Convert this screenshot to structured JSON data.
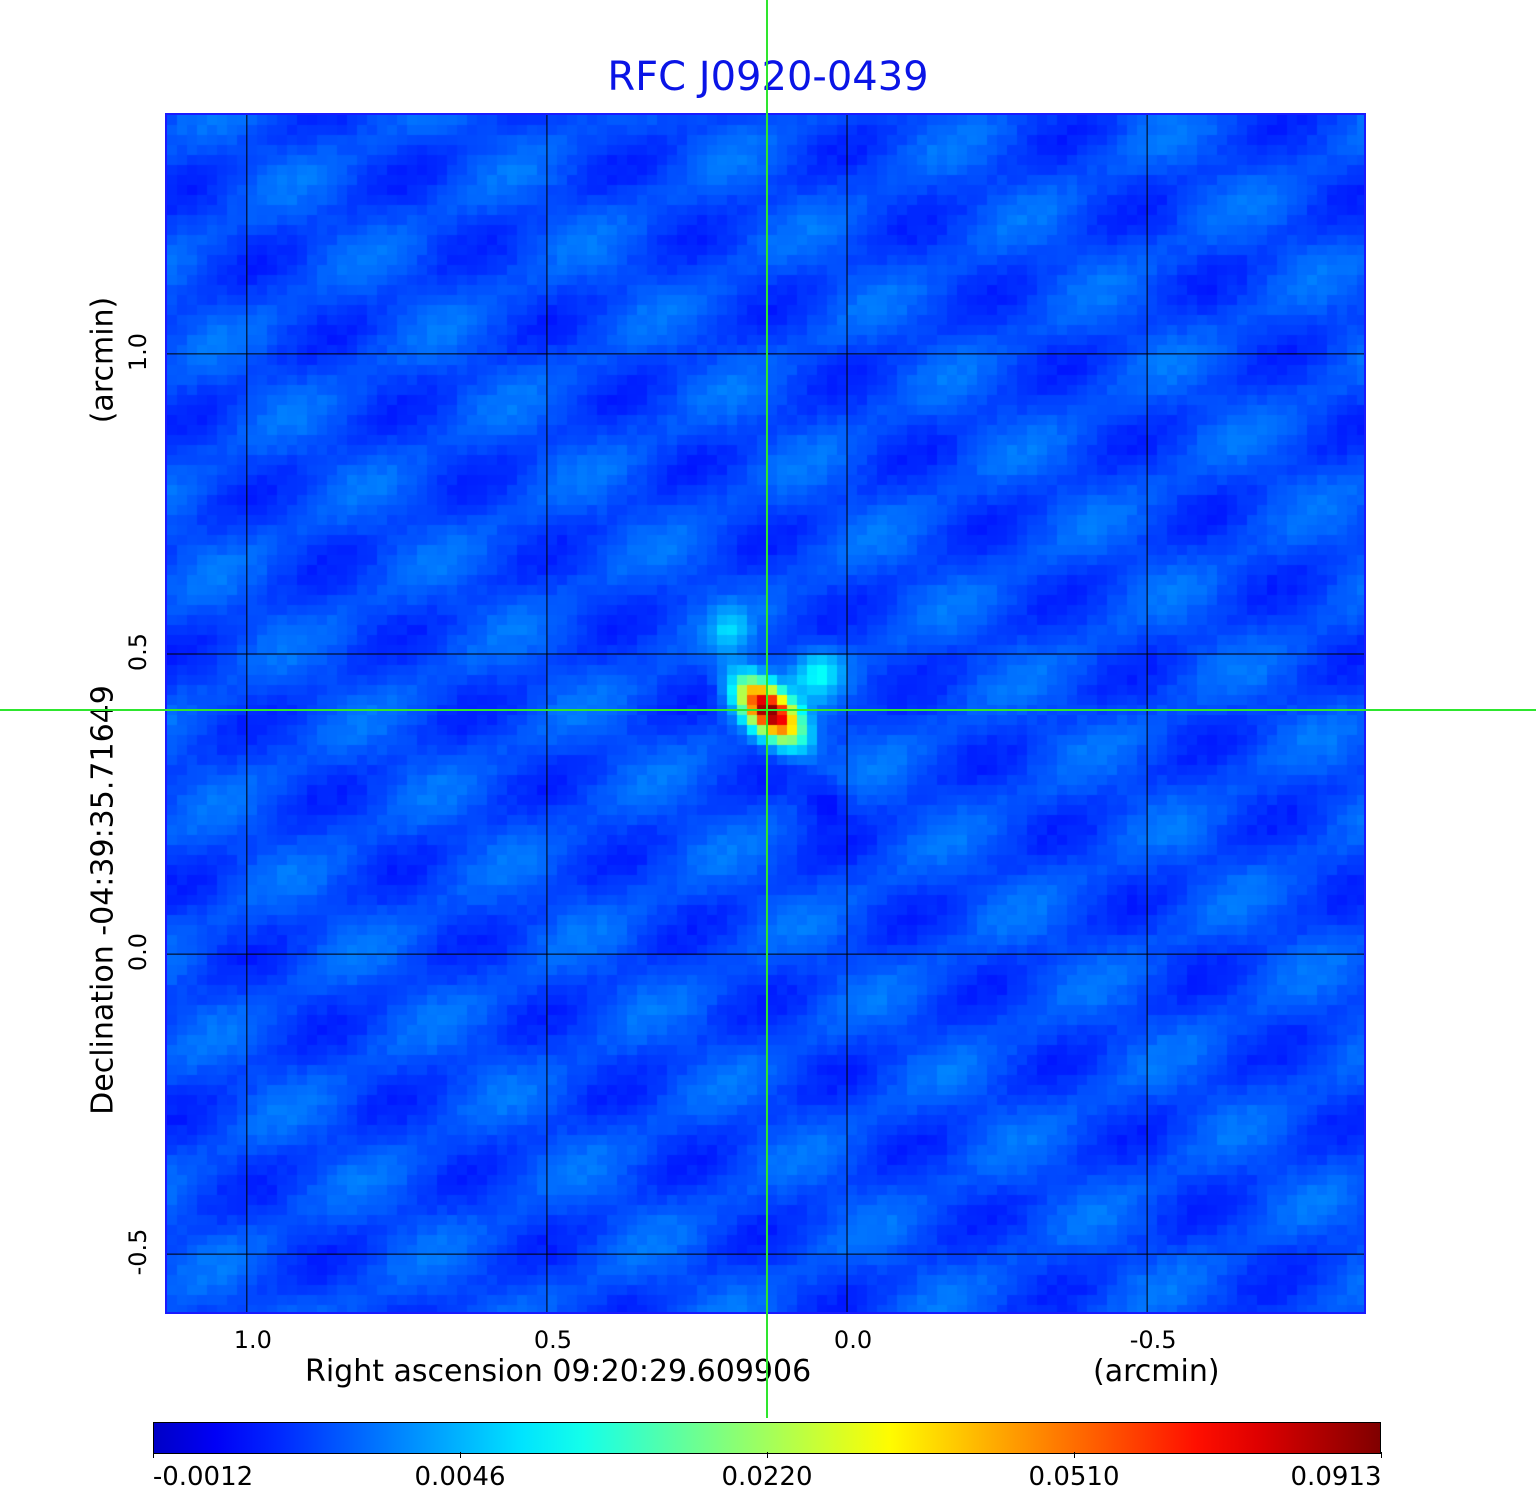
{
  "chart_data": {
    "type": "heatmap",
    "title": "RFC J0920-0439",
    "xlabel": "Right ascension  09:20:29.609906",
    "xunit": "(arcmin)",
    "ylabel": "Declination  -04:39:35.71649",
    "yunit": "(arcmin)",
    "xlim": [
      1.133,
      -0.868
    ],
    "ylim": [
      -0.603,
      1.398
    ],
    "xticks": [
      {
        "value": 1.0,
        "label": "1.0"
      },
      {
        "value": 0.5,
        "label": "0.5"
      },
      {
        "value": 0.0,
        "label": "0.0"
      },
      {
        "value": -0.5,
        "label": "-0.5"
      }
    ],
    "yticks": [
      {
        "value": 1.0,
        "label": "1.0"
      },
      {
        "value": 0.5,
        "label": "0.5"
      },
      {
        "value": 0.0,
        "label": "0.0"
      },
      {
        "value": -0.5,
        "label": "-0.5"
      }
    ],
    "grid": true,
    "crosshair": {
      "x": 0.13,
      "y": 0.405,
      "color": "#2ee62e"
    },
    "source_peak": {
      "x": 0.13,
      "y": 0.405,
      "value": 0.0913
    },
    "colormap": "jet",
    "colorbar": {
      "placement": "bottom",
      "ticks": [
        "-0.0012",
        "0.0046",
        "0.0220",
        "0.0510",
        "0.0913"
      ],
      "min": -0.0012,
      "max": 0.0913
    },
    "colors": {
      "title": "#0a14e6",
      "frame": "#1a1aff"
    }
  }
}
